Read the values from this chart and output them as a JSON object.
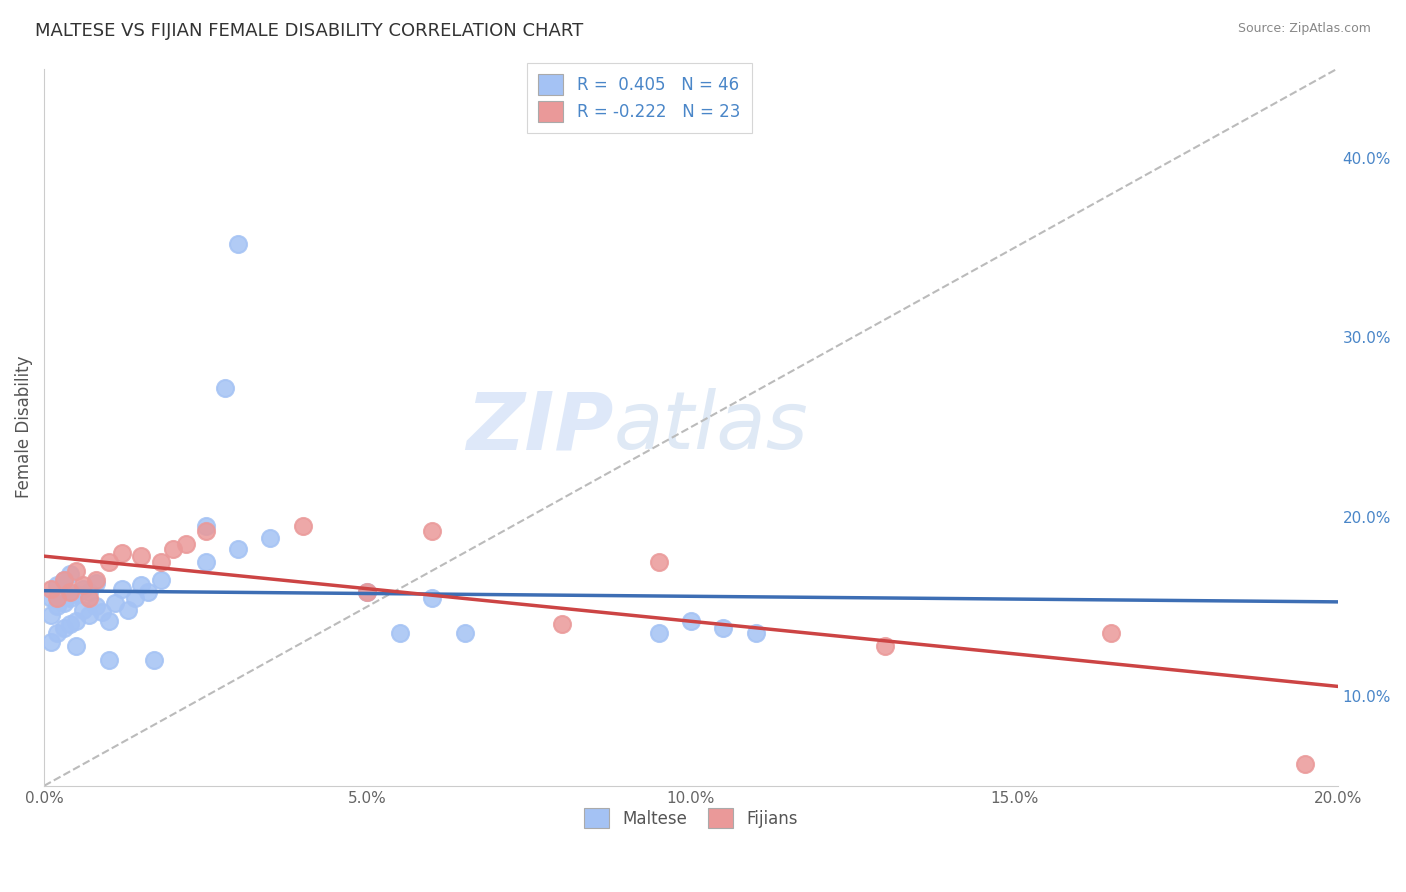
{
  "title": "MALTESE VS FIJIAN FEMALE DISABILITY CORRELATION CHART",
  "source": "Source: ZipAtlas.com",
  "ylabel": "Female Disability",
  "maltese_color": "#a4c2f4",
  "fijian_color": "#ea9999",
  "maltese_line_color": "#3d6eb4",
  "fijian_line_color": "#cc4444",
  "ref_line_color": "#bbbbbb",
  "R_maltese": 0.405,
  "N_maltese": 46,
  "R_fijian": -0.222,
  "N_fijian": 23,
  "xlim": [
    0.0,
    0.2
  ],
  "ylim": [
    0.05,
    0.45
  ],
  "xticks": [
    0.0,
    0.05,
    0.1,
    0.15,
    0.2
  ],
  "xtick_labels": [
    "0.0%",
    "5.0%",
    "10.0%",
    "15.0%",
    "20.0%"
  ],
  "yticks": [
    0.1,
    0.2,
    0.3,
    0.4
  ],
  "ytick_labels": [
    "10.0%",
    "20.0%",
    "30.0%",
    "40.0%"
  ],
  "maltese_x": [
    0.001,
    0.001,
    0.001,
    0.002,
    0.002,
    0.002,
    0.003,
    0.003,
    0.003,
    0.004,
    0.004,
    0.004,
    0.005,
    0.005,
    0.005,
    0.006,
    0.006,
    0.007,
    0.007,
    0.008,
    0.008,
    0.009,
    0.01,
    0.01,
    0.011,
    0.012,
    0.013,
    0.014,
    0.015,
    0.016,
    0.017,
    0.018,
    0.025,
    0.025,
    0.03,
    0.035,
    0.05,
    0.055,
    0.06,
    0.065,
    0.095,
    0.1,
    0.105,
    0.11,
    0.03,
    0.028
  ],
  "maltese_y": [
    0.13,
    0.145,
    0.155,
    0.135,
    0.15,
    0.162,
    0.138,
    0.152,
    0.165,
    0.14,
    0.155,
    0.168,
    0.142,
    0.157,
    0.128,
    0.148,
    0.16,
    0.145,
    0.158,
    0.15,
    0.163,
    0.147,
    0.142,
    0.12,
    0.152,
    0.16,
    0.148,
    0.155,
    0.162,
    0.158,
    0.12,
    0.165,
    0.175,
    0.195,
    0.182,
    0.188,
    0.158,
    0.135,
    0.155,
    0.135,
    0.135,
    0.142,
    0.138,
    0.135,
    0.352,
    0.272
  ],
  "fijian_x": [
    0.001,
    0.002,
    0.003,
    0.004,
    0.005,
    0.006,
    0.007,
    0.008,
    0.01,
    0.012,
    0.015,
    0.018,
    0.02,
    0.022,
    0.025,
    0.04,
    0.05,
    0.06,
    0.08,
    0.095,
    0.13,
    0.165,
    0.195
  ],
  "fijian_y": [
    0.16,
    0.155,
    0.165,
    0.158,
    0.17,
    0.162,
    0.155,
    0.165,
    0.175,
    0.18,
    0.178,
    0.175,
    0.182,
    0.185,
    0.192,
    0.195,
    0.158,
    0.192,
    0.14,
    0.175,
    0.128,
    0.135,
    0.062
  ]
}
